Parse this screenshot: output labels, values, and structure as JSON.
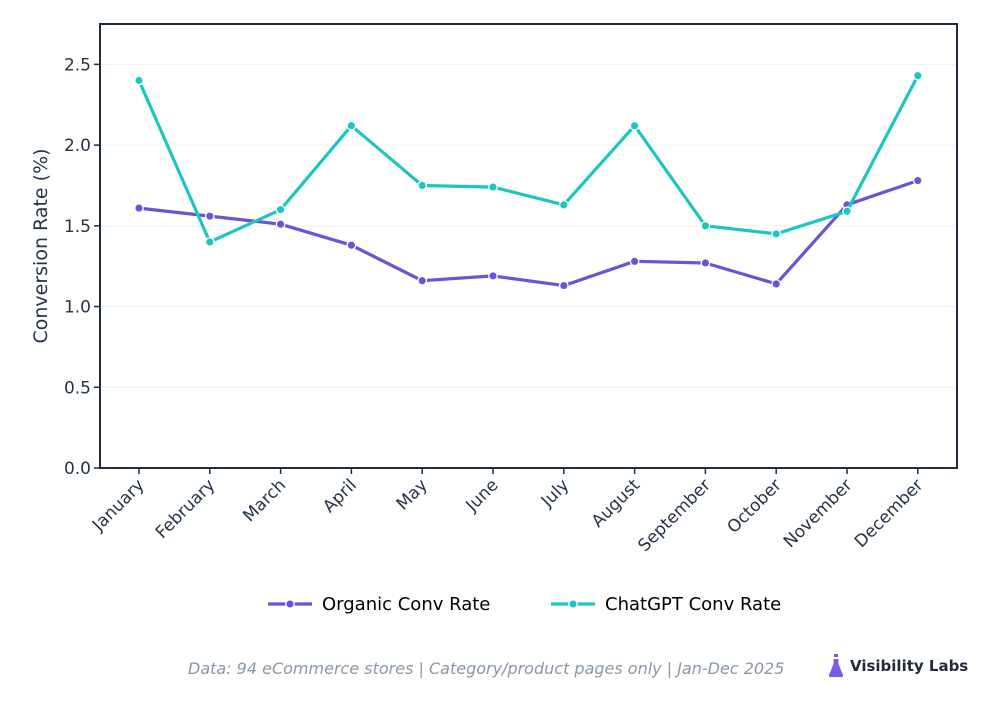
{
  "chart_data": {
    "type": "line",
    "ylabel": "Conversion Rate (%)",
    "xlabel": "",
    "title": "",
    "ylim": [
      0,
      2.75
    ],
    "yticks": [
      0.0,
      0.5,
      1.0,
      1.5,
      2.0,
      2.5
    ],
    "ytick_labels": [
      "0.0",
      "0.5",
      "1.0",
      "1.5",
      "2.0",
      "2.5"
    ],
    "grid": "horizontal, faint",
    "legend_position": "bottom-center",
    "categories": [
      "January",
      "February",
      "March",
      "April",
      "May",
      "June",
      "July",
      "August",
      "September",
      "October",
      "November",
      "December"
    ],
    "series": [
      {
        "name": "Organic Conv Rate",
        "color": "#6b52d6",
        "values": [
          1.61,
          1.56,
          1.51,
          1.38,
          1.16,
          1.19,
          1.13,
          1.28,
          1.27,
          1.14,
          1.63,
          1.78
        ]
      },
      {
        "name": "ChatGPT Conv Rate",
        "color": "#1cc6c0",
        "values": [
          2.4,
          1.4,
          1.6,
          2.12,
          1.75,
          1.74,
          1.63,
          2.12,
          1.5,
          1.45,
          1.59,
          2.43
        ]
      }
    ]
  },
  "footer": {
    "source_note": "Data: 94 eCommerce stores | Category/product pages only | Jan-Dec 2025",
    "brand": "Visibility Labs",
    "brand_icon": "flask-icon",
    "brand_color": "#7b5ce8"
  }
}
